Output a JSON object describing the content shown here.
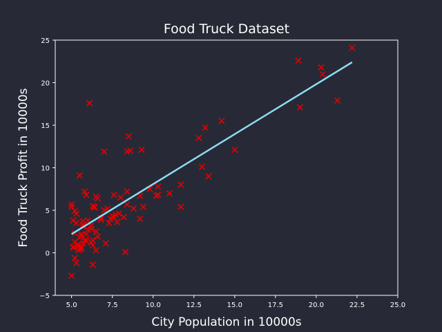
{
  "chart_data": {
    "type": "scatter",
    "title": "Food Truck Dataset",
    "xlabel": "City Population in 10000s",
    "ylabel": "Food Truck Profit in 10000s",
    "xlim": [
      4.0,
      25.0
    ],
    "ylim": [
      -5,
      25
    ],
    "xticks": [
      5.0,
      7.5,
      10.0,
      12.5,
      15.0,
      17.5,
      20.0,
      22.5,
      25.0
    ],
    "xtick_labels": [
      "5.0",
      "7.5",
      "10.0",
      "12.5",
      "15.0",
      "17.5",
      "20.0",
      "22.5",
      "25.0"
    ],
    "yticks": [
      -5,
      0,
      5,
      10,
      15,
      20,
      25
    ],
    "ytick_labels": [
      "−5",
      "0",
      "5",
      "10",
      "15",
      "20",
      "25"
    ],
    "grid": false,
    "colors": {
      "background": "#272a36",
      "axes": "#ffffff",
      "points": "#e60000",
      "fit_line": "#8fdcf5"
    },
    "points": [
      [
        6.1,
        17.6
      ],
      [
        5.5,
        9.1
      ],
      [
        8.5,
        13.7
      ],
      [
        7.0,
        11.9
      ],
      [
        5.9,
        6.8
      ],
      [
        8.4,
        11.9
      ],
      [
        7.5,
        4.3
      ],
      [
        8.6,
        12.0
      ],
      [
        6.5,
        6.6
      ],
      [
        5.1,
        3.8
      ],
      [
        5.7,
        3.3
      ],
      [
        14.2,
        15.5
      ],
      [
        5.7,
        3.1
      ],
      [
        8.4,
        7.2
      ],
      [
        5.6,
        0.7
      ],
      [
        5.3,
        3.5
      ],
      [
        6.4,
        5.4
      ],
      [
        5.1,
        0.6
      ],
      [
        5.0,
        5.4
      ],
      [
        6.4,
        5.3
      ],
      [
        5.4,
        0.3
      ],
      [
        5.7,
        3.7
      ],
      [
        5.2,
        1.3
      ],
      [
        8.2,
        4.2
      ],
      [
        6.2,
        2.8
      ],
      [
        13.2,
        14.7
      ],
      [
        5.9,
        2.2
      ],
      [
        7.0,
        5.0
      ],
      [
        8.4,
        5.7
      ],
      [
        6.6,
        6.4
      ],
      [
        6.2,
        3.2
      ],
      [
        5.5,
        0.4
      ],
      [
        5.1,
        0.7
      ],
      [
        11.7,
        5.4
      ],
      [
        5.2,
        2.3
      ],
      [
        8.8,
        5.2
      ],
      [
        5.0,
        5.7
      ],
      [
        13.0,
        10.1
      ],
      [
        5.5,
        1.8
      ],
      [
        9.2,
        6.7
      ],
      [
        21.3,
        17.9
      ],
      [
        18.9,
        22.6
      ],
      [
        19.0,
        17.1
      ],
      [
        20.3,
        21.8
      ],
      [
        20.4,
        21.0
      ],
      [
        22.2,
        24.1
      ],
      [
        5.2,
        4.9
      ],
      [
        10.2,
        6.7
      ],
      [
        10.3,
        7.8
      ],
      [
        9.3,
        12.1
      ],
      [
        15.0,
        12.1
      ],
      [
        12.8,
        13.5
      ],
      [
        13.4,
        9.0
      ],
      [
        11.7,
        8.0
      ],
      [
        10.3,
        6.8
      ],
      [
        11.0,
        7.0
      ],
      [
        9.4,
        5.4
      ],
      [
        9.8,
        7.5
      ],
      [
        7.6,
        6.8
      ],
      [
        9.2,
        4.0
      ],
      [
        5.0,
        -2.7
      ],
      [
        5.3,
        -1.2
      ],
      [
        6.3,
        -1.4
      ],
      [
        8.3,
        0.1
      ],
      [
        7.1,
        1.1
      ],
      [
        6.5,
        0.3
      ],
      [
        5.2,
        -0.6
      ],
      [
        6.3,
        5.5
      ],
      [
        7.6,
        4.2
      ],
      [
        7.9,
        4.6
      ],
      [
        7.3,
        3.5
      ],
      [
        8.0,
        6.5
      ],
      [
        5.6,
        2.0
      ],
      [
        5.9,
        1.4
      ],
      [
        6.2,
        1.2
      ],
      [
        5.8,
        1.5
      ],
      [
        5.4,
        1.0
      ],
      [
        5.6,
        0.5
      ],
      [
        6.0,
        2.7
      ],
      [
        6.3,
        0.9
      ],
      [
        6.6,
        1.9
      ],
      [
        5.3,
        4.6
      ],
      [
        7.4,
        4.0
      ],
      [
        7.8,
        3.6
      ],
      [
        5.4,
        0.8
      ],
      [
        6.0,
        3.8
      ],
      [
        5.8,
        7.2
      ],
      [
        7.2,
        5.2
      ],
      [
        6.8,
        3.9
      ],
      [
        5.7,
        1.1
      ],
      [
        6.3,
        1.5
      ],
      [
        6.8,
        4.1
      ],
      [
        7.7,
        4.5
      ],
      [
        6.5,
        2.5
      ],
      [
        5.6,
        2.2
      ]
    ],
    "fit_line": {
      "x": [
        5.0,
        22.2
      ],
      "y": [
        2.2,
        22.4
      ]
    }
  }
}
